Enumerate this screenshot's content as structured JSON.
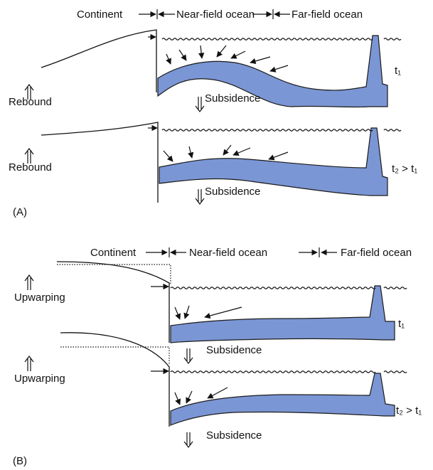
{
  "panels": [
    {
      "label": "(A)",
      "header": {
        "continent": "Continent",
        "near_field": "Near-field ocean",
        "far_field": "Far-field ocean"
      },
      "stages": [
        {
          "uplift": "Rebound",
          "subsidence": "Subsidence",
          "time": "t₁"
        },
        {
          "uplift": "Rebound",
          "subsidence": "Subsidence",
          "time": "t₂ > t₁"
        }
      ]
    },
    {
      "label": "(B)",
      "header": {
        "continent": "Continent",
        "near_field": "Near-field ocean",
        "far_field": "Far-field ocean"
      },
      "stages": [
        {
          "uplift": "Upwarping",
          "subsidence": "Subsidence",
          "time": "t₁"
        },
        {
          "uplift": "Upwarping",
          "subsidence": "Subsidence",
          "time": "t₂ > t₁"
        }
      ]
    }
  ]
}
